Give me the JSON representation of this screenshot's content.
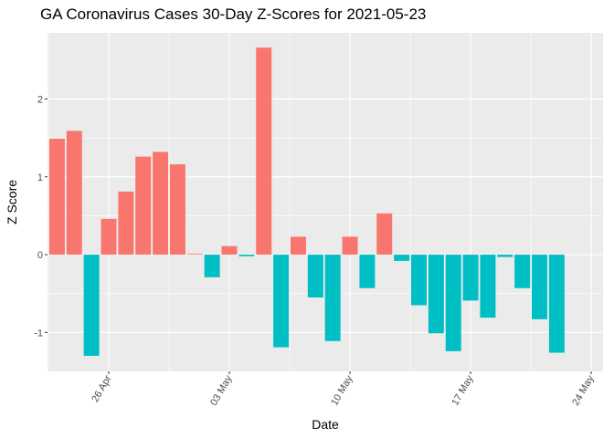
{
  "chart_data": {
    "type": "bar",
    "title": "GA Coronavirus Cases 30-Day Z-Scores for 2021-05-23",
    "xlabel": "Date",
    "ylabel": "Z Score",
    "ylim": [
      -1.5,
      2.85
    ],
    "yticks": [
      -1,
      0,
      1,
      2
    ],
    "xticks": [
      {
        "label": "26 Apr",
        "day": 0
      },
      {
        "label": "03 May",
        "day": 7
      },
      {
        "label": "10 May",
        "day": 14
      },
      {
        "label": "17 May",
        "day": 21
      },
      {
        "label": "24 May",
        "day": 28
      }
    ],
    "colors": {
      "positive": "#F8766D",
      "negative": "#00BFC4",
      "panel": "#EBEBEB",
      "grid": "#FFFFFF"
    },
    "series": [
      {
        "name": "Z Score",
        "days": [
          -3,
          -2,
          -1,
          0,
          1,
          2,
          3,
          4,
          5,
          6,
          7,
          8,
          9,
          10,
          11,
          12,
          13,
          14,
          15,
          16,
          17,
          18,
          19,
          20,
          21,
          22,
          23,
          24,
          25,
          26,
          27
        ],
        "dates": [
          "2021-04-23",
          "2021-04-24",
          "2021-04-25",
          "2021-04-26",
          "2021-04-27",
          "2021-04-28",
          "2021-04-29",
          "2021-04-30",
          "2021-05-01",
          "2021-05-02",
          "2021-05-03",
          "2021-05-04",
          "2021-05-05",
          "2021-05-06",
          "2021-05-07",
          "2021-05-08",
          "2021-05-09",
          "2021-05-10",
          "2021-05-11",
          "2021-05-12",
          "2021-05-13",
          "2021-05-14",
          "2021-05-15",
          "2021-05-16",
          "2021-05-17",
          "2021-05-18",
          "2021-05-19",
          "2021-05-20",
          "2021-05-21",
          "2021-05-22",
          "2021-05-23"
        ],
        "values": [
          1.49,
          1.59,
          -1.3,
          0.46,
          0.81,
          1.26,
          1.32,
          1.16,
          0.01,
          -0.29,
          0.11,
          -0.02,
          2.66,
          -1.19,
          0.23,
          -0.55,
          -1.11,
          0.23,
          -0.43,
          0.53,
          -0.08,
          -0.65,
          -1.01,
          -1.24,
          -0.59,
          -0.81,
          -0.03,
          -0.43,
          -0.83,
          -1.26,
          0
        ]
      }
    ]
  }
}
